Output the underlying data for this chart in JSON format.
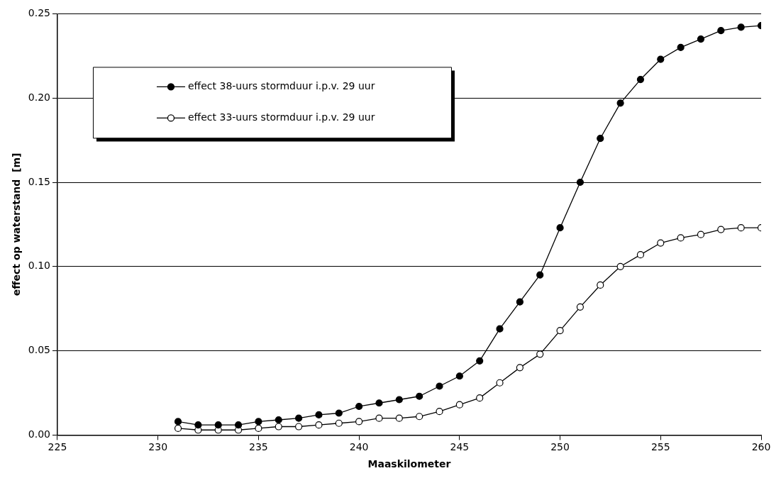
{
  "chart_data": {
    "type": "line",
    "xlabel": "Maaskilometer",
    "ylabel": "effect op waterstand  [m]",
    "x": [
      231,
      232,
      233,
      234,
      235,
      236,
      237,
      238,
      239,
      240,
      241,
      242,
      243,
      244,
      245,
      246,
      247,
      248,
      249,
      250,
      251,
      252,
      253,
      254,
      255,
      256,
      257,
      258,
      259,
      260
    ],
    "series": [
      {
        "name": "effect 38-uurs stormduur i.p.v. 29 uur",
        "color": "#000000",
        "values": [
          0.008,
          0.006,
          0.006,
          0.006,
          0.008,
          0.009,
          0.01,
          0.012,
          0.013,
          0.017,
          0.019,
          0.021,
          0.023,
          0.029,
          0.035,
          0.044,
          0.063,
          0.079,
          0.095,
          0.123,
          0.15,
          0.176,
          0.197,
          0.211,
          0.223,
          0.23,
          0.235,
          0.24,
          0.242,
          0.243
        ]
      },
      {
        "name": "effect 33-uurs stormduur i.p.v. 29 uur",
        "color": "#000000",
        "values": [
          0.004,
          0.003,
          0.003,
          0.003,
          0.004,
          0.005,
          0.005,
          0.006,
          0.007,
          0.008,
          0.01,
          0.01,
          0.011,
          0.014,
          0.018,
          0.022,
          0.031,
          0.04,
          0.048,
          0.062,
          0.076,
          0.089,
          0.1,
          0.107,
          0.114,
          0.117,
          0.119,
          0.122,
          0.123,
          0.123
        ]
      }
    ],
    "xlim": [
      225,
      260
    ],
    "xticks": [
      225,
      230,
      235,
      240,
      245,
      250,
      255,
      260
    ],
    "ylim": [
      0,
      0.25
    ],
    "yticks": [
      {
        "value": 0,
        "label": "0.00"
      },
      {
        "value": 0.05,
        "label": "0.05"
      },
      {
        "value": 0.1,
        "label": "0.10"
      },
      {
        "value": 0.15,
        "label": "0.15"
      },
      {
        "value": 0.2,
        "label": "0.20"
      },
      {
        "value": 0.25,
        "label": "0.25"
      }
    ],
    "grid": "y",
    "legend": "top left",
    "marker": "circle",
    "line_style": "solid"
  }
}
